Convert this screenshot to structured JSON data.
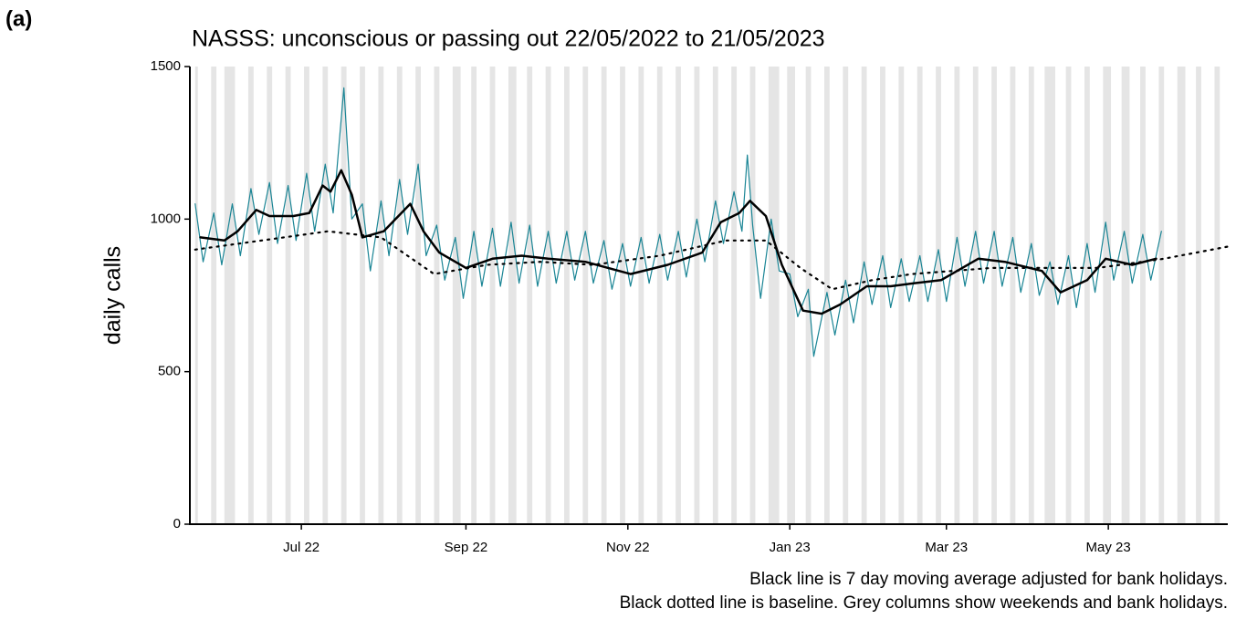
{
  "panel_label": "(a)",
  "chart_data": {
    "type": "line",
    "title": "NASSS: unconscious or passing out 22/05/2022 to 21/05/2023",
    "y_label": "daily calls",
    "notes": [
      "Black line is 7 day moving average adjusted for bank holidays.",
      "Black dotted line is baseline. Grey columns show weekends and bank holidays."
    ],
    "xlim": [
      -2,
      389
    ],
    "xticks": [
      {
        "value": 40,
        "label": "Jul 22"
      },
      {
        "value": 102,
        "label": "Sep 22"
      },
      {
        "value": 163,
        "label": "Nov 22"
      },
      {
        "value": 224,
        "label": "Jan 23"
      },
      {
        "value": 283,
        "label": "Mar 23"
      },
      {
        "value": 344,
        "label": "May 23"
      }
    ],
    "ylim": [
      0,
      1500
    ],
    "yticks": [
      0,
      500,
      1000,
      1500
    ],
    "shade_color": "#e5e5e5",
    "shaded": [
      [
        0,
        1
      ],
      [
        6,
        8
      ],
      [
        11,
        15
      ],
      [
        20,
        22
      ],
      [
        27,
        29
      ],
      [
        34,
        36
      ],
      [
        41,
        43
      ],
      [
        48,
        50
      ],
      [
        55,
        57
      ],
      [
        62,
        64
      ],
      [
        69,
        71
      ],
      [
        76,
        78
      ],
      [
        83,
        85
      ],
      [
        90,
        92
      ],
      [
        97,
        100
      ],
      [
        104,
        106
      ],
      [
        111,
        113
      ],
      [
        118,
        121
      ],
      [
        125,
        127
      ],
      [
        132,
        134
      ],
      [
        139,
        141
      ],
      [
        146,
        148
      ],
      [
        153,
        155
      ],
      [
        160,
        162
      ],
      [
        167,
        169
      ],
      [
        174,
        176
      ],
      [
        181,
        183
      ],
      [
        188,
        190
      ],
      [
        195,
        197
      ],
      [
        202,
        204
      ],
      [
        209,
        211
      ],
      [
        216,
        220
      ],
      [
        223,
        226
      ],
      [
        230,
        232
      ],
      [
        237,
        239
      ],
      [
        244,
        246
      ],
      [
        251,
        253
      ],
      [
        258,
        260
      ],
      [
        265,
        267
      ],
      [
        272,
        274
      ],
      [
        279,
        281
      ],
      [
        286,
        288
      ],
      [
        293,
        295
      ],
      [
        300,
        302
      ],
      [
        307,
        309
      ],
      [
        314,
        316
      ],
      [
        320,
        324
      ],
      [
        328,
        330
      ],
      [
        335,
        337
      ],
      [
        342,
        345
      ],
      [
        349,
        352
      ],
      [
        356,
        358
      ],
      [
        363,
        365
      ],
      [
        370,
        373
      ],
      [
        377,
        379
      ],
      [
        384,
        386
      ]
    ],
    "series": [
      {
        "color": "#1a8595",
        "style": "thin",
        "x": [
          0,
          3,
          7,
          10,
          14,
          17,
          21,
          24,
          28,
          31,
          35,
          38,
          42,
          45,
          49,
          52,
          56,
          59,
          63,
          66,
          70,
          73,
          77,
          80,
          84,
          87,
          91,
          94,
          98,
          101,
          105,
          108,
          112,
          115,
          119,
          122,
          126,
          129,
          133,
          136,
          140,
          143,
          147,
          150,
          154,
          157,
          161,
          164,
          168,
          171,
          175,
          178,
          182,
          185,
          189,
          192,
          196,
          199,
          203,
          206,
          208,
          210,
          213,
          217,
          220,
          224,
          227,
          231,
          233,
          238,
          241,
          245,
          248,
          252,
          255,
          259,
          262,
          266,
          269,
          273,
          276,
          280,
          283,
          287,
          290,
          294,
          297,
          301,
          304,
          308,
          311,
          315,
          318,
          322,
          325,
          329,
          332,
          336,
          339,
          343,
          346,
          350,
          353,
          357,
          360,
          364
        ],
        "values": [
          1050,
          860,
          1020,
          850,
          1050,
          880,
          1100,
          950,
          1120,
          920,
          1110,
          930,
          1150,
          960,
          1180,
          1020,
          1430,
          1000,
          1050,
          830,
          1060,
          880,
          1130,
          950,
          1180,
          880,
          980,
          800,
          940,
          740,
          960,
          780,
          970,
          780,
          990,
          790,
          980,
          780,
          960,
          790,
          960,
          800,
          960,
          790,
          930,
          770,
          920,
          780,
          940,
          790,
          950,
          800,
          960,
          810,
          1000,
          860,
          1060,
          920,
          1090,
          960,
          1210,
          980,
          740,
          1000,
          830,
          820,
          680,
          770,
          550,
          760,
          620,
          800,
          660,
          860,
          720,
          880,
          710,
          870,
          730,
          880,
          730,
          900,
          730,
          940,
          780,
          960,
          790,
          960,
          780,
          940,
          760,
          920,
          750,
          860,
          720,
          880,
          710,
          920,
          760,
          990,
          800,
          960,
          790,
          950,
          800,
          960
        ]
      },
      {
        "color": "#000000",
        "style": "solid",
        "x": [
          2,
          11,
          16,
          23,
          28,
          37,
          43,
          48,
          51,
          55,
          59,
          63,
          71,
          81,
          86,
          92,
          102,
          112,
          123,
          133,
          147,
          164,
          178,
          191,
          198,
          205,
          209,
          215,
          221,
          229,
          236,
          243,
          253,
          262,
          271,
          281,
          295,
          305,
          319,
          326,
          336,
          343,
          353,
          362
        ],
        "values": [
          940,
          930,
          960,
          1030,
          1010,
          1010,
          1020,
          1110,
          1090,
          1160,
          1080,
          940,
          960,
          1050,
          960,
          890,
          840,
          870,
          880,
          870,
          860,
          820,
          850,
          890,
          990,
          1020,
          1060,
          1010,
          850,
          700,
          690,
          720,
          780,
          780,
          790,
          800,
          870,
          860,
          830,
          760,
          800,
          870,
          850,
          870
        ]
      },
      {
        "color": "#000000",
        "style": "dotted",
        "x": [
          0,
          25,
          50,
          70,
          90,
          110,
          130,
          150,
          175,
          200,
          215,
          228,
          240,
          255,
          270,
          300,
          340,
          365,
          389
        ],
        "values": [
          900,
          930,
          960,
          940,
          820,
          850,
          860,
          850,
          880,
          930,
          930,
          840,
          770,
          800,
          820,
          840,
          840,
          870,
          910
        ]
      }
    ]
  }
}
